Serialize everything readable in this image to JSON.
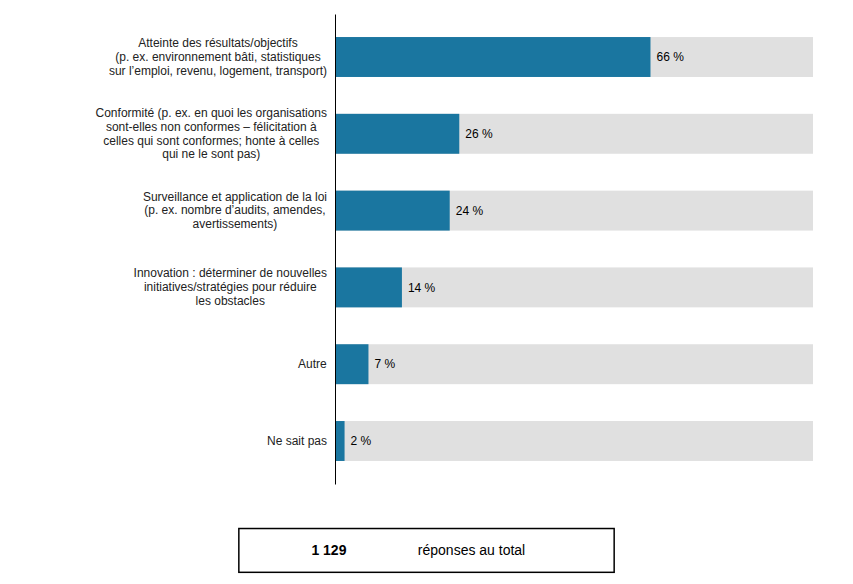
{
  "chart_data": {
    "type": "bar",
    "orientation": "horizontal",
    "categories": [
      "Ne sait pas",
      "Autre",
      "Innovation : déterminer de nouvelles\ninitiatives/stratégies pour réduire\nles obstacles",
      "Surveillance et application de la loi\n(p. ex. nombre d’audits, amendes,\navertissements)",
      "Conformité (p. ex. en quoi les organisations\nsont-elles non conformes – félicitation à\ncelles qui sont conformes; honte à celles\nqui ne le sont pas)",
      "Atteinte des résultats/objectifs\n(p. ex. environnement bâti, statistiques\nsur l’emploi, revenu, logement, transport)"
    ],
    "values": [
      2,
      7,
      14,
      24,
      26,
      66
    ],
    "value_labels": [
      "2 %",
      "7 %",
      "14 %",
      "24 %",
      "26 %",
      "66 %"
    ],
    "data_labels": true,
    "color": "#1a76a0",
    "xlim": [
      0,
      100
    ],
    "tick_labels": "y",
    "grid": false,
    "annotations": [
      "1 129",
      "réponses au total"
    ]
  }
}
